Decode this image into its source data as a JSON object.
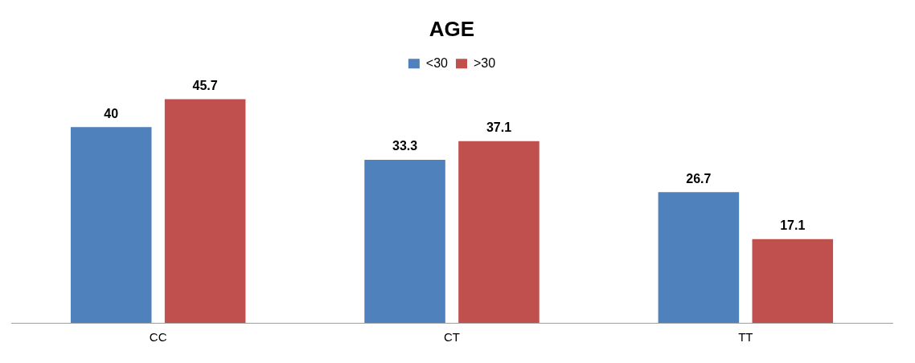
{
  "chart_data": {
    "type": "bar",
    "title": "AGE",
    "categories": [
      "CC",
      "CT",
      "TT"
    ],
    "series": [
      {
        "name": "<30",
        "color": "#4f81bd",
        "values": [
          40,
          33.3,
          26.7
        ]
      },
      {
        "name": ">30",
        "color": "#c0504d",
        "values": [
          45.7,
          37.1,
          17.1
        ]
      }
    ],
    "data_labels": true,
    "legend": "top",
    "grid": false
  }
}
